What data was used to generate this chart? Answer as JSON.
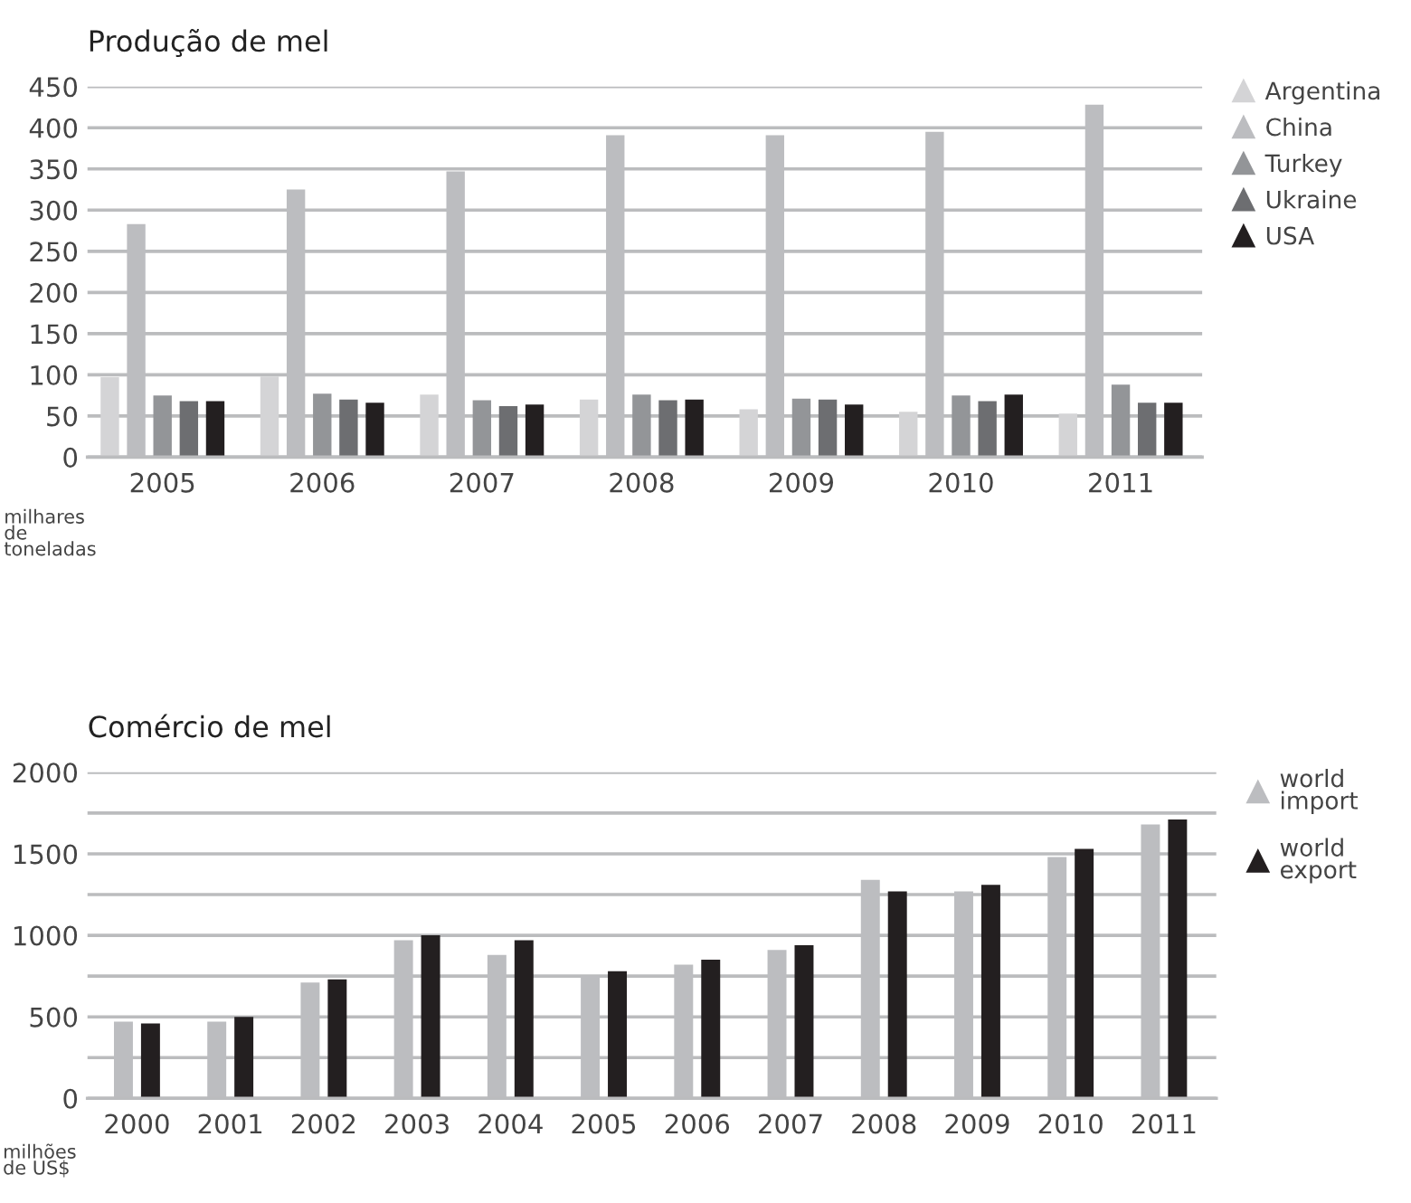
{
  "chart_data": [
    {
      "type": "bar",
      "title": "Produção de mel",
      "ylabel": "milhares\nde\ntoneladas",
      "marker": "triangle",
      "grid": "y",
      "legend": "right",
      "categories": [
        "2005",
        "2006",
        "2007",
        "2008",
        "2009",
        "2010",
        "2011"
      ],
      "ylim": [
        0,
        450
      ],
      "yticks": [
        0,
        50,
        100,
        150,
        200,
        250,
        300,
        350,
        400,
        450
      ],
      "series": [
        {
          "name": "Argentina",
          "color": "#d4d4d6",
          "values": [
            97,
            98,
            76,
            70,
            58,
            55,
            53
          ]
        },
        {
          "name": "China",
          "color": "#bcbdc0",
          "values": [
            283,
            325,
            347,
            391,
            391,
            395,
            428
          ]
        },
        {
          "name": "Turkey",
          "color": "#939598",
          "values": [
            75,
            77,
            69,
            76,
            71,
            75,
            88
          ]
        },
        {
          "name": "Ukraine",
          "color": "#6d6e71",
          "values": [
            68,
            70,
            62,
            69,
            70,
            68,
            66
          ]
        },
        {
          "name": "USA",
          "color": "#231f20",
          "values": [
            68,
            66,
            64,
            70,
            64,
            76,
            66
          ]
        }
      ]
    },
    {
      "type": "bar",
      "title": "Comércio de mel",
      "ylabel": "milhões\nde US$",
      "marker": "triangle",
      "grid": "y",
      "legend": "right",
      "categories": [
        "2000",
        "2001",
        "2002",
        "2003",
        "2004",
        "2005",
        "2006",
        "2007",
        "2008",
        "2009",
        "2010",
        "2011"
      ],
      "ylim": [
        0,
        2000
      ],
      "yticks": [
        0,
        {
          "value": 250,
          "label": null
        },
        500,
        {
          "value": 750,
          "label": null
        },
        1000,
        {
          "value": 1250,
          "label": null
        },
        1500,
        {
          "value": 1750,
          "label": null
        },
        2000
      ],
      "series": [
        {
          "name": "world\nimport",
          "color": "#bcbdc0",
          "values": [
            470,
            470,
            710,
            970,
            880,
            750,
            820,
            910,
            1340,
            1270,
            1480,
            1680
          ]
        },
        {
          "name": "world\nexport",
          "color": "#231f20",
          "values": [
            460,
            500,
            730,
            1000,
            970,
            780,
            850,
            940,
            1270,
            1310,
            1530,
            1710
          ]
        }
      ]
    }
  ]
}
